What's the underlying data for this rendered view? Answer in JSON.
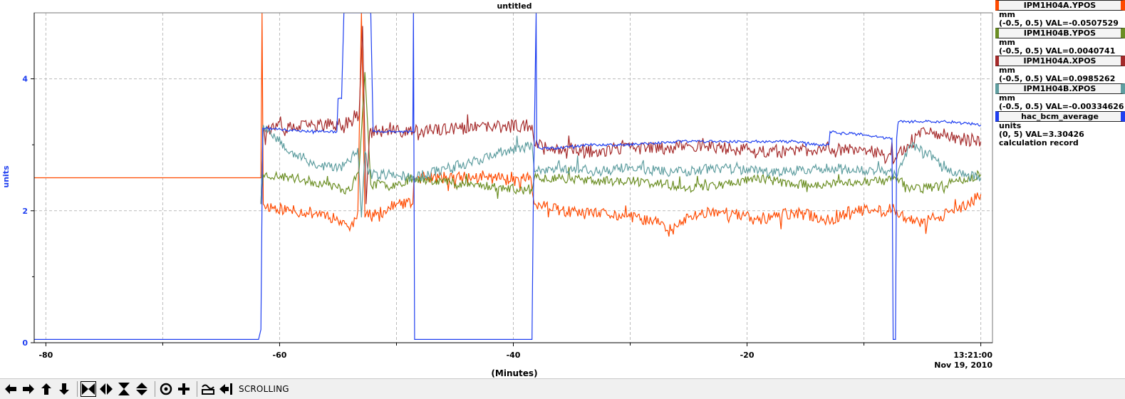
{
  "chart_data": {
    "type": "line",
    "title": "untitled",
    "xlabel": "(Minutes)",
    "ylabel": "units",
    "xlim": [
      -81,
      1
    ],
    "ylim": [
      0,
      5
    ],
    "x_ticks": [
      {
        "value": -80,
        "label": "-80"
      },
      {
        "value": -60,
        "label": "-60"
      },
      {
        "value": -40,
        "label": "-40"
      },
      {
        "value": -20,
        "label": "-20"
      },
      {
        "value": 0,
        "label": "13:21:00"
      }
    ],
    "x_subtitle": "Nov 19, 2010",
    "y_ticks": [
      {
        "value": 0,
        "label": "0"
      },
      {
        "value": 2,
        "label": "2"
      },
      {
        "value": 4,
        "label": "4"
      }
    ],
    "grid": true,
    "legend_position": "right",
    "series": [
      {
        "name": "IPM1H04A.YPOS",
        "color": "#ff4a00",
        "unit": "mm",
        "range": "(-0.5, 0.5)",
        "val": "VAL=-0.0507529",
        "noise": 0.09,
        "seed": 11,
        "x": [
          -81,
          -61.6,
          -61.5,
          -61.4,
          -61.3,
          -59,
          -56,
          -55,
          -54.5,
          -54,
          -53.3,
          -53,
          -52.7,
          -52.5,
          -52.2,
          -51,
          -50,
          -48.6,
          -48.5,
          -38.5,
          -38.4,
          -38.2,
          -36,
          -34,
          -32,
          -30,
          -28,
          -26.5,
          -25,
          -23,
          -21,
          -19,
          -17,
          -15,
          -13,
          -11,
          -9,
          -8,
          -7.5,
          -7.3,
          -7.2,
          -6.5,
          -5,
          -4,
          -2,
          -1,
          0
        ],
        "y": [
          2.5,
          2.5,
          5.0,
          2.1,
          2.08,
          2.0,
          1.95,
          1.85,
          1.85,
          1.7,
          2.0,
          5.0,
          1.9,
          2.0,
          1.9,
          2.0,
          2.1,
          2.1,
          2.5,
          2.5,
          2.3,
          2.1,
          2.0,
          1.95,
          1.95,
          1.9,
          1.85,
          1.7,
          1.9,
          2.0,
          1.95,
          1.85,
          1.95,
          1.95,
          1.85,
          2.0,
          2.0,
          2.0,
          2.1,
          1.95,
          2.0,
          1.9,
          1.8,
          1.9,
          2.0,
          2.1,
          2.25
        ]
      },
      {
        "name": "IPM1H04B.YPOS",
        "color": "#6b8e23",
        "unit": "mm",
        "range": "(-0.5, 0.5)",
        "val": "VAL=0.0040741",
        "noise": 0.07,
        "seed": 23,
        "x": [
          -61.6,
          -61.4,
          -59,
          -56,
          -54,
          -53.2,
          -52.7,
          -52.2,
          -50,
          -48.6,
          -38.4,
          -38.2,
          -36,
          -33,
          -30,
          -27,
          -25,
          -22,
          -19,
          -16,
          -13,
          -10,
          -8,
          -7.3,
          -6,
          -4,
          -2,
          0
        ],
        "y": [
          2.1,
          2.55,
          2.5,
          2.4,
          2.3,
          2.6,
          4.1,
          2.4,
          2.4,
          2.5,
          2.3,
          2.5,
          2.5,
          2.45,
          2.45,
          2.4,
          2.35,
          2.4,
          2.5,
          2.4,
          2.4,
          2.45,
          2.45,
          2.5,
          2.35,
          2.35,
          2.45,
          2.55
        ]
      },
      {
        "name": "IPM1H04A.XPOS",
        "color": "#a52a2a",
        "unit": "mm",
        "range": "(-0.5, 0.5)",
        "val": "VAL=0.0985262",
        "noise": 0.1,
        "seed": 37,
        "x": [
          -61.6,
          -61.4,
          -59,
          -57,
          -55,
          -54,
          -53.2,
          -52.9,
          -52.6,
          -52.3,
          -51,
          -48.6,
          -38.4,
          -38.2,
          -36,
          -33,
          -30,
          -27,
          -25,
          -22,
          -19,
          -16,
          -13,
          -10,
          -8,
          -7.3,
          -6,
          -5,
          -4,
          -2,
          0
        ],
        "y": [
          2.1,
          3.25,
          3.25,
          3.3,
          3.3,
          3.35,
          3.45,
          4.8,
          2.1,
          3.2,
          3.2,
          3.2,
          3.3,
          3.0,
          2.95,
          2.9,
          2.95,
          2.95,
          3.0,
          2.95,
          2.9,
          2.9,
          2.95,
          2.95,
          2.8,
          2.8,
          3.0,
          3.25,
          3.2,
          3.1,
          3.05
        ]
      },
      {
        "name": "IPM1H04B.XPOS",
        "color": "#5f9ea0",
        "unit": "mm",
        "range": "(-0.5, 0.5)",
        "val": "VAL=-0.00334626",
        "noise": 0.08,
        "seed": 53,
        "x": [
          -61.6,
          -61.4,
          -59,
          -57,
          -55,
          -54,
          -53.3,
          -53,
          -52.7,
          -52.4,
          -50,
          -48.6,
          -38.4,
          -38.2,
          -36,
          -33,
          -30,
          -27,
          -25,
          -22,
          -19,
          -16,
          -13,
          -10,
          -8,
          -7.3,
          -6,
          -4,
          -2,
          0
        ],
        "y": [
          2.1,
          3.3,
          2.9,
          2.7,
          2.65,
          2.75,
          2.95,
          1.9,
          2.9,
          2.55,
          2.55,
          2.5,
          3.0,
          2.6,
          2.65,
          2.6,
          2.65,
          2.6,
          2.6,
          2.65,
          2.6,
          2.6,
          2.65,
          2.6,
          2.6,
          2.55,
          3.0,
          2.8,
          2.55,
          2.5
        ]
      },
      {
        "name": "hac_bcm_average",
        "color": "#1f3ff0",
        "unit": "units",
        "range": "(0, 5)",
        "val": "VAL=3.30426",
        "extra": "calculation record",
        "noise": 0.02,
        "seed": 71,
        "x": [
          -81,
          -61.8,
          -61.6,
          -61.45,
          -59,
          -56,
          -55.1,
          -55,
          -54.7,
          -54.5,
          -52.2,
          -52,
          -50,
          -48.6,
          -48.55,
          -48.45,
          -38.4,
          -38.3,
          -38.05,
          -38,
          -37.8,
          -36,
          -34,
          -30,
          -26,
          -22,
          -18,
          -16,
          -14,
          -13,
          -12.9,
          -10,
          -8,
          -7.6,
          -7.5,
          -7.4,
          -7.3,
          -7.2,
          -7.1,
          -7.05,
          -6,
          -3,
          0
        ],
        "y": [
          0.05,
          0.05,
          0.2,
          3.25,
          3.22,
          3.2,
          3.2,
          3.7,
          3.7,
          5.0,
          5.0,
          3.2,
          3.2,
          3.2,
          5.0,
          0.05,
          0.05,
          2.0,
          5.0,
          3.05,
          2.95,
          2.95,
          3.0,
          3.0,
          3.05,
          3.05,
          3.05,
          3.05,
          3.0,
          3.0,
          3.2,
          3.15,
          3.1,
          3.1,
          0.05,
          0.05,
          0.05,
          3.1,
          3.3,
          3.35,
          3.35,
          3.35,
          3.3
        ]
      }
    ]
  },
  "toolbar": {
    "buttons": [
      {
        "name": "scroll-left-button",
        "icon": "arrow-left-icon"
      },
      {
        "name": "scroll-right-button",
        "icon": "arrow-right-icon"
      },
      {
        "name": "scroll-up-button",
        "icon": "arrow-up-icon"
      },
      {
        "name": "scroll-down-button",
        "icon": "arrow-down-icon"
      },
      {
        "name": "zoom-in-x-button",
        "icon": "hourglass-horizontal-icon"
      },
      {
        "name": "zoom-out-x-button",
        "icon": "diamond-horizontal-icon"
      },
      {
        "name": "zoom-in-y-button",
        "icon": "hourglass-vertical-icon"
      },
      {
        "name": "zoom-out-y-button",
        "icon": "diamond-vertical-icon"
      },
      {
        "name": "zoom-reset-button",
        "icon": "circle-icon"
      },
      {
        "name": "zoom-plus-button",
        "icon": "plus-icon"
      },
      {
        "name": "autoscale-button",
        "icon": "wave-icon"
      },
      {
        "name": "back-to-end-button",
        "icon": "arrow-to-end-icon"
      }
    ],
    "mode_label": "SCROLLING"
  }
}
